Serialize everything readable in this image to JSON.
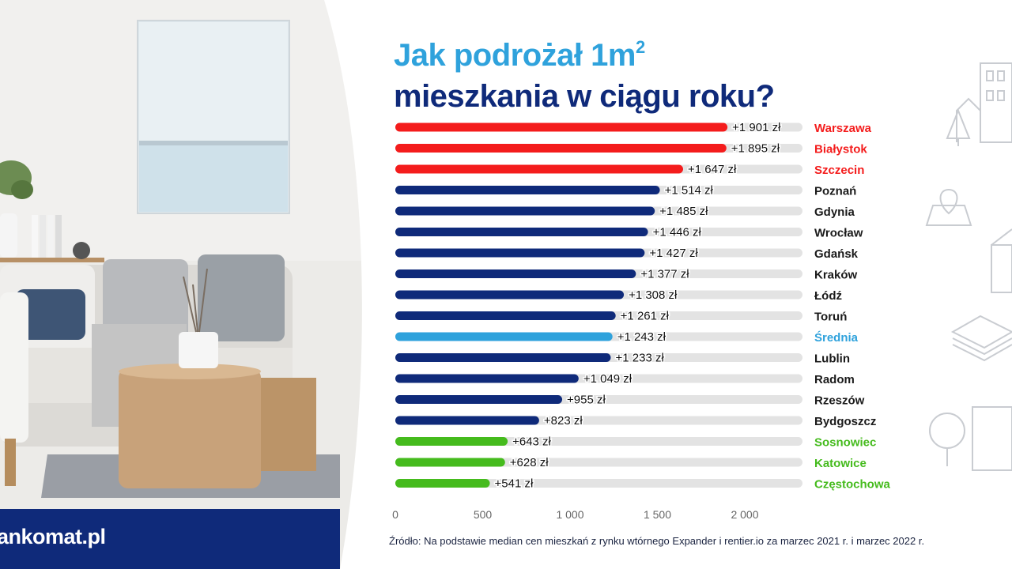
{
  "title": {
    "line1": "Jak podrożał 1m",
    "line1_sup": "2",
    "line2": "mieszkania w ciągu roku?"
  },
  "brand": {
    "logo_text": "ankomat.pl"
  },
  "source_note": "Źródło: Na podstawie median cen mieszkań z rynku wtórnego Expander i rentier.io za marzec 2021 r. i marzec 2022 r.",
  "colors": {
    "top": "#f41c1c",
    "mid": "#0f2a7a",
    "average": "#2fa2dc",
    "bottom": "#45bb1d",
    "track": "#e3e3e3"
  },
  "chart_data": {
    "type": "bar",
    "orientation": "horizontal",
    "unit": "zł",
    "xlim": [
      0,
      2000
    ],
    "x_ticks": [
      "0",
      "500",
      "1 000",
      "1 500",
      "2 000"
    ],
    "x_tick_values": [
      0,
      500,
      1000,
      1500,
      2000
    ],
    "grid": false,
    "bars": [
      {
        "city": "Warszawa",
        "value": 1901,
        "label": "+1 901 zł",
        "group": "top"
      },
      {
        "city": "Białystok",
        "value": 1895,
        "label": "+1 895 zł",
        "group": "top"
      },
      {
        "city": "Szczecin",
        "value": 1647,
        "label": "+1 647 zł",
        "group": "top"
      },
      {
        "city": "Poznań",
        "value": 1514,
        "label": "+1 514 zł",
        "group": "mid"
      },
      {
        "city": "Gdynia",
        "value": 1485,
        "label": "+1 485 zł",
        "group": "mid"
      },
      {
        "city": "Wrocław",
        "value": 1446,
        "label": "+1 446 zł",
        "group": "mid"
      },
      {
        "city": "Gdańsk",
        "value": 1427,
        "label": "+1 427 zł",
        "group": "mid"
      },
      {
        "city": "Kraków",
        "value": 1377,
        "label": "+1 377 zł",
        "group": "mid"
      },
      {
        "city": "Łódź",
        "value": 1308,
        "label": "+1 308 zł",
        "group": "mid"
      },
      {
        "city": "Toruń",
        "value": 1261,
        "label": "+1 261 zł",
        "group": "mid"
      },
      {
        "city": "Średnia",
        "value": 1243,
        "label": "+1 243 zł",
        "group": "average"
      },
      {
        "city": "Lublin",
        "value": 1233,
        "label": "+1 233 zł",
        "group": "mid"
      },
      {
        "city": "Radom",
        "value": 1049,
        "label": "+1 049 zł",
        "group": "mid"
      },
      {
        "city": "Rzeszów",
        "value": 955,
        "label": "+955 zł",
        "group": "mid"
      },
      {
        "city": "Bydgoszcz",
        "value": 823,
        "label": "+823 zł",
        "group": "mid"
      },
      {
        "city": "Sosnowiec",
        "value": 643,
        "label": "+643 zł",
        "group": "bottom"
      },
      {
        "city": "Katowice",
        "value": 628,
        "label": "+628 zł",
        "group": "bottom"
      },
      {
        "city": "Częstochowa",
        "value": 541,
        "label": "+541 zł",
        "group": "bottom"
      }
    ]
  }
}
